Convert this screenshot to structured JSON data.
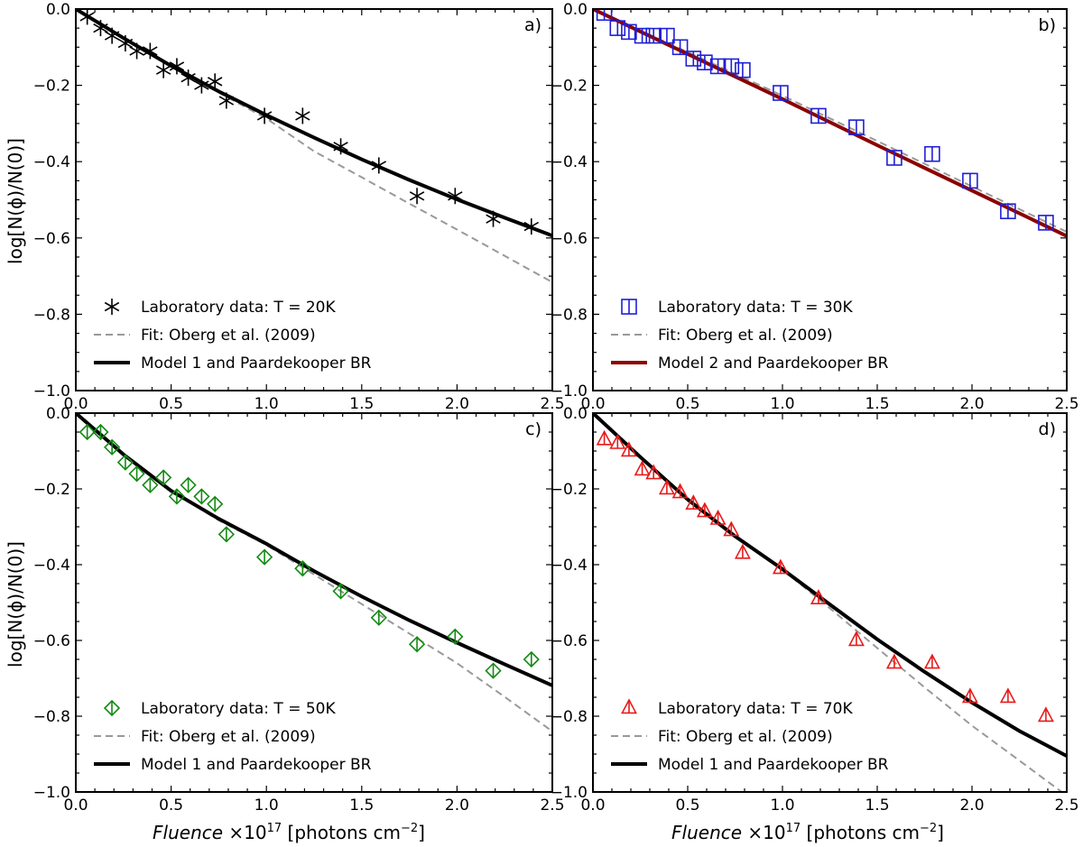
{
  "figure": {
    "xlabel_italic": "Fluence",
    "xlabel_multiplier": "×10",
    "xlabel_exponent": "17",
    "xlabel_units_start": "[photons cm",
    "xlabel_units_exponent": "−2",
    "xlabel_units_end": "]",
    "ylabel": "log[N(ϕ)/N(0)]"
  },
  "chart_data": [
    {
      "type": "scatter",
      "panel_label": "a)",
      "xlim": [
        0.0,
        2.5
      ],
      "ylim": [
        -1.0,
        0.0
      ],
      "xticks": [
        "0.0",
        "0.5",
        "1.0",
        "1.5",
        "2.0",
        "2.5"
      ],
      "yticks": [
        "0.0",
        "−0.2",
        "−0.4",
        "−0.6",
        "−0.8",
        "−1.0"
      ],
      "legend_position": "lower-left",
      "series": [
        {
          "name": "Laboratory data: T = 20K",
          "kind": "points",
          "marker": "asterisk",
          "color": "#000000",
          "x": [
            0.06,
            0.13,
            0.19,
            0.26,
            0.32,
            0.39,
            0.46,
            0.53,
            0.59,
            0.66,
            0.73,
            0.79,
            0.99,
            1.19,
            1.39,
            1.59,
            1.79,
            1.99,
            2.19,
            2.39
          ],
          "y": [
            -0.02,
            -0.05,
            -0.07,
            -0.09,
            -0.11,
            -0.11,
            -0.16,
            -0.15,
            -0.18,
            -0.2,
            -0.19,
            -0.24,
            -0.28,
            -0.28,
            -0.36,
            -0.41,
            -0.49,
            -0.49,
            -0.55,
            -0.57
          ]
        },
        {
          "name": "Fit: Oberg et al. (2009)",
          "kind": "dashed-line",
          "color": "#999999",
          "x": [
            0.0,
            0.25,
            0.5,
            0.75,
            1.0,
            1.25,
            1.5,
            1.75,
            2.0,
            2.25,
            2.5
          ],
          "y": [
            0.0,
            -0.076,
            -0.149,
            -0.219,
            -0.287,
            -0.373,
            -0.441,
            -0.51,
            -0.578,
            -0.647,
            -0.716
          ]
        },
        {
          "name": "Model 1 and Paardekooper BR",
          "kind": "solid-line",
          "color": "#000000",
          "x": [
            0.0,
            0.25,
            0.5,
            0.75,
            1.0,
            1.25,
            1.5,
            1.75,
            2.0,
            2.25,
            2.5
          ],
          "y": [
            0.0,
            -0.076,
            -0.149,
            -0.216,
            -0.278,
            -0.337,
            -0.394,
            -0.448,
            -0.499,
            -0.547,
            -0.594
          ]
        }
      ]
    },
    {
      "type": "scatter",
      "panel_label": "b)",
      "xlim": [
        0.0,
        2.5
      ],
      "ylim": [
        -1.0,
        0.0
      ],
      "xticks": [
        "0.0",
        "0.5",
        "1.0",
        "1.5",
        "2.0",
        "2.5"
      ],
      "yticks": [
        "0.0",
        "−0.2",
        "−0.4",
        "−0.6",
        "−0.8",
        "−1.0"
      ],
      "legend_position": "lower-left",
      "series": [
        {
          "name": "Laboratory data: T = 30K",
          "kind": "points",
          "marker": "square",
          "color": "#1f1fd6",
          "x": [
            0.06,
            0.13,
            0.19,
            0.26,
            0.32,
            0.39,
            0.46,
            0.53,
            0.59,
            0.66,
            0.73,
            0.79,
            0.99,
            1.19,
            1.39,
            1.59,
            1.79,
            1.99,
            2.19,
            2.39
          ],
          "y": [
            -0.01,
            -0.05,
            -0.06,
            -0.07,
            -0.07,
            -0.07,
            -0.1,
            -0.13,
            -0.14,
            -0.15,
            -0.15,
            -0.16,
            -0.22,
            -0.28,
            -0.31,
            -0.39,
            -0.38,
            -0.45,
            -0.53,
            -0.56
          ]
        },
        {
          "name": "Fit: Oberg et al. (2009)",
          "kind": "dashed-line",
          "color": "#999999",
          "x": [
            0.0,
            0.5,
            1.0,
            1.5,
            2.0,
            2.5
          ],
          "y": [
            0.0,
            -0.113,
            -0.227,
            -0.346,
            -0.465,
            -0.584
          ]
        },
        {
          "name": "Model 2 and Paardekooper BR",
          "kind": "solid-line",
          "color": "#8b0000",
          "x": [
            0.0,
            0.5,
            1.0,
            1.5,
            2.0,
            2.5
          ],
          "y": [
            0.0,
            -0.118,
            -0.236,
            -0.357,
            -0.476,
            -0.595
          ]
        }
      ]
    },
    {
      "type": "scatter",
      "panel_label": "c)",
      "xlim": [
        0.0,
        2.5
      ],
      "ylim": [
        -1.0,
        0.0
      ],
      "xticks": [
        "0.0",
        "0.5",
        "1.0",
        "1.5",
        "2.0",
        "2.5"
      ],
      "yticks": [
        "0.0",
        "−0.2",
        "−0.4",
        "−0.6",
        "−0.8",
        "−1.0"
      ],
      "legend_position": "lower-left",
      "series": [
        {
          "name": "Laboratory data: T = 50K",
          "kind": "points",
          "marker": "diamond",
          "color": "#138a13",
          "x": [
            0.06,
            0.13,
            0.19,
            0.26,
            0.32,
            0.39,
            0.46,
            0.53,
            0.59,
            0.66,
            0.73,
            0.79,
            0.99,
            1.19,
            1.39,
            1.59,
            1.79,
            1.99,
            2.19,
            2.39
          ],
          "y": [
            -0.05,
            -0.05,
            -0.09,
            -0.13,
            -0.16,
            -0.19,
            -0.17,
            -0.22,
            -0.19,
            -0.22,
            -0.24,
            -0.32,
            -0.38,
            -0.41,
            -0.47,
            -0.54,
            -0.61,
            -0.59,
            -0.68,
            -0.65
          ]
        },
        {
          "name": "Fit: Oberg et al. (2009)",
          "kind": "dashed-line",
          "color": "#999999",
          "x": [
            0.0,
            0.25,
            0.5,
            0.75,
            1.0,
            1.25,
            1.5,
            1.75,
            2.0,
            2.25,
            2.5
          ],
          "y": [
            0.0,
            -0.109,
            -0.205,
            -0.283,
            -0.348,
            -0.426,
            -0.504,
            -0.582,
            -0.66,
            -0.749,
            -0.84
          ]
        },
        {
          "name": "Model 1 and Paardekooper BR",
          "kind": "solid-line",
          "color": "#000000",
          "x": [
            0.0,
            0.25,
            0.5,
            0.75,
            1.0,
            1.25,
            1.5,
            1.75,
            2.0,
            2.25,
            2.5
          ],
          "y": [
            0.0,
            -0.109,
            -0.205,
            -0.279,
            -0.345,
            -0.417,
            -0.484,
            -0.547,
            -0.606,
            -0.663,
            -0.719
          ]
        }
      ]
    },
    {
      "type": "scatter",
      "panel_label": "d)",
      "xlim": [
        0.0,
        2.5
      ],
      "ylim": [
        -1.0,
        0.0
      ],
      "xticks": [
        "0.0",
        "0.5",
        "1.0",
        "1.5",
        "2.0",
        "2.5"
      ],
      "yticks": [
        "0.0",
        "−0.2",
        "−0.4",
        "−0.6",
        "−0.8",
        "−1.0"
      ],
      "legend_position": "lower-left",
      "series": [
        {
          "name": "Laboratory data: T = 70K",
          "kind": "points",
          "marker": "triangle",
          "color": "#e81b1b",
          "x": [
            0.06,
            0.13,
            0.19,
            0.26,
            0.32,
            0.39,
            0.46,
            0.53,
            0.59,
            0.66,
            0.73,
            0.79,
            0.99,
            1.19,
            1.39,
            1.59,
            1.79,
            1.99,
            2.19,
            2.39
          ],
          "y": [
            -0.07,
            -0.08,
            -0.1,
            -0.15,
            -0.16,
            -0.2,
            -0.21,
            -0.24,
            -0.26,
            -0.28,
            -0.31,
            -0.37,
            -0.41,
            -0.49,
            -0.6,
            -0.66,
            -0.66,
            -0.75,
            -0.75,
            -0.8
          ]
        },
        {
          "name": "Fit: Oberg et al. (2009)",
          "kind": "dashed-line",
          "color": "#999999",
          "x": [
            0.0,
            0.25,
            0.5,
            0.75,
            1.0,
            1.25,
            1.5,
            1.75,
            2.0,
            2.25,
            2.5
          ],
          "y": [
            0.0,
            -0.116,
            -0.23,
            -0.325,
            -0.413,
            -0.515,
            -0.62,
            -0.724,
            -0.825,
            -0.917,
            -1.01
          ]
        },
        {
          "name": "Model 1 and Paardekooper BR",
          "kind": "solid-line",
          "color": "#000000",
          "x": [
            0.0,
            0.25,
            0.5,
            0.75,
            1.0,
            1.25,
            1.5,
            1.75,
            2.0,
            2.25,
            2.5
          ],
          "y": [
            0.0,
            -0.116,
            -0.228,
            -0.325,
            -0.412,
            -0.505,
            -0.597,
            -0.683,
            -0.764,
            -0.839,
            -0.905
          ]
        }
      ]
    }
  ]
}
